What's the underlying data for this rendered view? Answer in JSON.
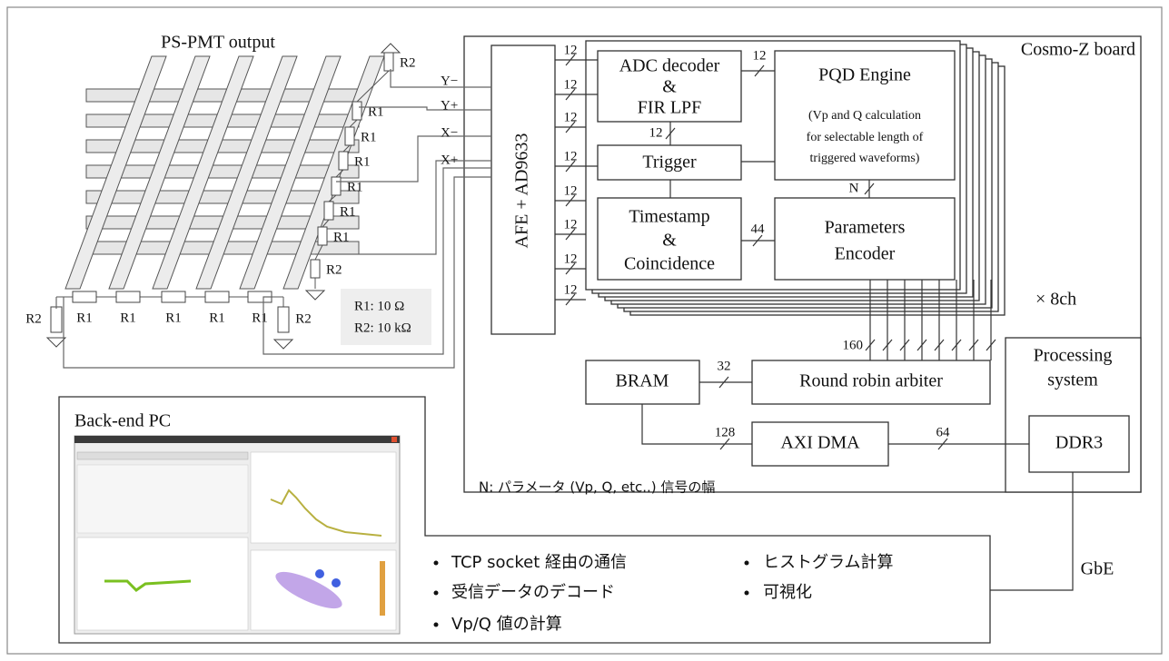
{
  "pmt": {
    "title": "PS-PMT output",
    "right_resistors": [
      "R2",
      "R1",
      "R1",
      "R1",
      "R1",
      "R1",
      "R1",
      "R2"
    ],
    "bottom_resistors": [
      "R1",
      "R1",
      "R1",
      "R1",
      "R1"
    ],
    "left_resistor": "R2",
    "bottom_right_resistor": "R2",
    "legend": [
      "R1: 10 Ω",
      "R2: 10 kΩ"
    ]
  },
  "signals": [
    "Y−",
    "Y+",
    "X−",
    "X+"
  ],
  "board": {
    "title": "Cosmo-Z board",
    "afe": "AFE + AD9633",
    "afe_bus_widths": [
      12,
      12,
      12,
      12,
      12,
      12,
      12,
      12
    ],
    "adc": [
      "ADC decoder",
      "&",
      "FIR LPF"
    ],
    "pqd": {
      "title": "PQD Engine",
      "lines": [
        "(Vp and Q calculation",
        "for selectable length of",
        "triggered waveforms)"
      ]
    },
    "trigger": "Trigger",
    "timestamp": [
      "Timestamp",
      "&",
      "Coincidence"
    ],
    "encoder": [
      "Parameters",
      "Encoder"
    ],
    "adc_to_pqd_width": 12,
    "adc_to_trigger_width": 12,
    "pqd_to_encoder_width": "N",
    "timestamp_to_encoder_width": 44,
    "channels": "× 8ch",
    "encoder_bus_width": 160,
    "bram": "BRAM",
    "arbiter": "Round robin arbiter",
    "arbiter_width": 32,
    "axi_dma": "AXI DMA",
    "bram_dma_width": 128,
    "dma_ddr_width": 64,
    "processing": [
      "Processing",
      "system"
    ],
    "ddr": "DDR3",
    "note": "N: パラメータ (Vp, Q, etc..) 信号の幅"
  },
  "link": "GbE",
  "pc": {
    "title": "Back-end PC",
    "tasks_left": [
      "TCP socket 経由の通信",
      "受信データのデコード",
      "Vp/Q 値の計算"
    ],
    "tasks_right": [
      "ヒストグラム計算",
      "可視化"
    ]
  }
}
